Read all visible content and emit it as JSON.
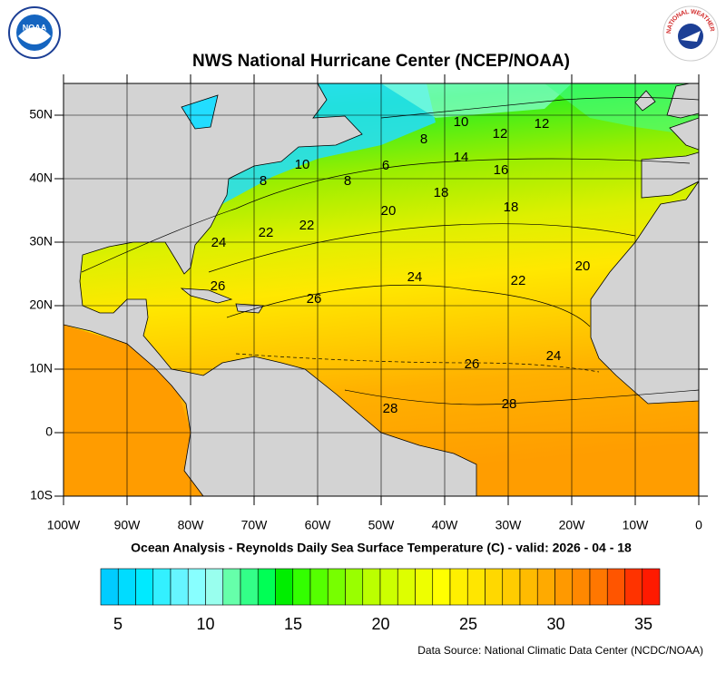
{
  "logos": {
    "noaa": "NOAA",
    "nws": "NATIONAL WEATHER SERVICE"
  },
  "title": "NWS National Hurricane Center (NCEP/NOAA)",
  "lat_labels": [
    "50N",
    "40N",
    "30N",
    "20N",
    "10N",
    "0",
    "10S"
  ],
  "lon_labels": [
    "100W",
    "90W",
    "80W",
    "70W",
    "60W",
    "50W",
    "40W",
    "30W",
    "20W",
    "10W",
    "0"
  ],
  "contour_labels": [
    "10",
    "12",
    "8",
    "12",
    "14",
    "16",
    "10",
    "6",
    "8",
    "8",
    "18",
    "20",
    "18",
    "22",
    "22",
    "24",
    "20",
    "24",
    "22",
    "26",
    "26",
    "26",
    "24",
    "28",
    "28"
  ],
  "caption": "Ocean Analysis - Reynolds Daily Sea Surface Temperature (C) - valid: 2026 - 04 - 18",
  "colorbar": {
    "colors": [
      "#00ccff",
      "#00dcff",
      "#00eaff",
      "#33f0ff",
      "#66f5ff",
      "#88ffff",
      "#99ffee",
      "#66ffaa",
      "#33ff88",
      "#00ff55",
      "#00ee00",
      "#33ff00",
      "#55ff00",
      "#77ff00",
      "#99ff00",
      "#bbff00",
      "#ccff00",
      "#ddff00",
      "#eeff00",
      "#ffff00",
      "#fff000",
      "#ffe600",
      "#ffd800",
      "#ffcc00",
      "#ffbb00",
      "#ffaa00",
      "#ff9900",
      "#ff8800",
      "#ff7700",
      "#ff5500",
      "#ff3300",
      "#ff1a00"
    ],
    "labels": [
      "5",
      "10",
      "15",
      "20",
      "25",
      "30",
      "35"
    ]
  },
  "source": "Data Source: National Climatic Data Center (NCDC/NOAA)"
}
